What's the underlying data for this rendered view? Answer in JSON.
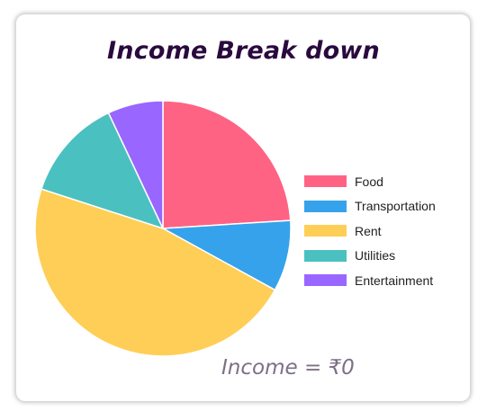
{
  "title": "Income Break down",
  "footer": "Income = ₹0",
  "chart_data": {
    "type": "pie",
    "categories": [
      "Food",
      "Transportation",
      "Rent",
      "Utilities",
      "Entertainment"
    ],
    "values": [
      24,
      9,
      47,
      13,
      7
    ],
    "colors": [
      "#ff6384",
      "#36a2eb",
      "#ffce56",
      "#4bc0c0",
      "#9966ff"
    ],
    "legend_position": "right"
  }
}
